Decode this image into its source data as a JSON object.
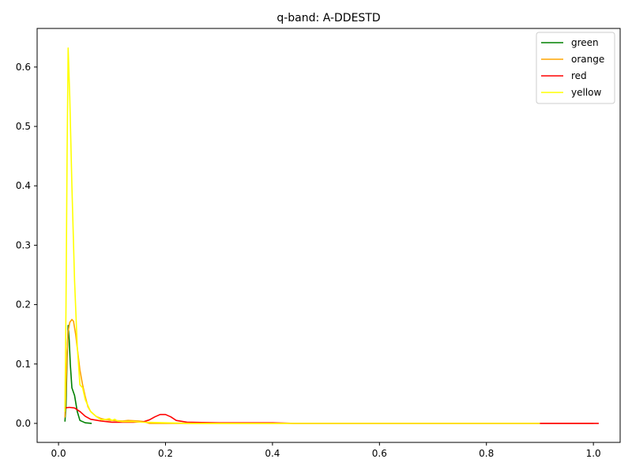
{
  "chart_data": {
    "type": "line",
    "title": "q-band: A-DDESTD",
    "xlabel": "",
    "ylabel": "",
    "xlim": [
      -0.04,
      1.05
    ],
    "ylim": [
      -0.032,
      0.665
    ],
    "xticks": [
      0.0,
      0.2,
      0.4,
      0.6,
      0.8,
      1.0
    ],
    "xtick_labels": [
      "0.0",
      "0.2",
      "0.4",
      "0.6",
      "0.8",
      "1.0"
    ],
    "yticks": [
      0.0,
      0.1,
      0.2,
      0.3,
      0.4,
      0.5,
      0.6
    ],
    "ytick_labels": [
      "0.0",
      "0.1",
      "0.2",
      "0.3",
      "0.4",
      "0.5",
      "0.6"
    ],
    "grid": false,
    "legend_position": "top-right",
    "series": [
      {
        "name": "green",
        "color": "#008000",
        "points": [
          [
            0.012,
            0.003
          ],
          [
            0.014,
            0.03
          ],
          [
            0.016,
            0.11
          ],
          [
            0.018,
            0.165
          ],
          [
            0.02,
            0.14
          ],
          [
            0.022,
            0.1
          ],
          [
            0.025,
            0.06
          ],
          [
            0.03,
            0.047
          ],
          [
            0.035,
            0.02
          ],
          [
            0.04,
            0.005
          ],
          [
            0.05,
            0.001
          ],
          [
            0.062,
            0.0
          ]
        ]
      },
      {
        "name": "orange",
        "color": "#ffa500",
        "points": [
          [
            0.012,
            0.01
          ],
          [
            0.014,
            0.06
          ],
          [
            0.016,
            0.12
          ],
          [
            0.018,
            0.155
          ],
          [
            0.021,
            0.17
          ],
          [
            0.025,
            0.175
          ],
          [
            0.028,
            0.172
          ],
          [
            0.032,
            0.15
          ],
          [
            0.036,
            0.12
          ],
          [
            0.04,
            0.09
          ],
          [
            0.045,
            0.065
          ],
          [
            0.05,
            0.045
          ],
          [
            0.055,
            0.028
          ],
          [
            0.06,
            0.02
          ],
          [
            0.07,
            0.012
          ],
          [
            0.08,
            0.008
          ],
          [
            0.09,
            0.006
          ],
          [
            0.1,
            0.005
          ],
          [
            0.12,
            0.004
          ],
          [
            0.13,
            0.005
          ],
          [
            0.15,
            0.004
          ],
          [
            0.16,
            0.003
          ],
          [
            0.17,
            0.0
          ],
          [
            0.19,
            0.0
          ],
          [
            0.25,
            0.0
          ],
          [
            0.45,
            0.0
          ],
          [
            1.0,
            0.0
          ]
        ]
      },
      {
        "name": "red",
        "color": "#ff0000",
        "points": [
          [
            0.012,
            0.026
          ],
          [
            0.02,
            0.027
          ],
          [
            0.03,
            0.026
          ],
          [
            0.04,
            0.02
          ],
          [
            0.05,
            0.012
          ],
          [
            0.06,
            0.007
          ],
          [
            0.08,
            0.004
          ],
          [
            0.1,
            0.002
          ],
          [
            0.12,
            0.002
          ],
          [
            0.14,
            0.002
          ],
          [
            0.16,
            0.003
          ],
          [
            0.17,
            0.006
          ],
          [
            0.18,
            0.011
          ],
          [
            0.19,
            0.015
          ],
          [
            0.2,
            0.015
          ],
          [
            0.21,
            0.011
          ],
          [
            0.22,
            0.005
          ],
          [
            0.24,
            0.002
          ],
          [
            0.3,
            0.001
          ],
          [
            0.4,
            0.001
          ],
          [
            0.44,
            0.0
          ],
          [
            0.6,
            0.0
          ],
          [
            0.8,
            0.0
          ],
          [
            0.9,
            0.0
          ],
          [
            1.01,
            0.0
          ]
        ]
      },
      {
        "name": "yellow",
        "color": "#ffff00",
        "points": [
          [
            0.012,
            0.02
          ],
          [
            0.014,
            0.2
          ],
          [
            0.016,
            0.45
          ],
          [
            0.018,
            0.632
          ],
          [
            0.021,
            0.55
          ],
          [
            0.025,
            0.4
          ],
          [
            0.03,
            0.24
          ],
          [
            0.035,
            0.13
          ],
          [
            0.04,
            0.065
          ],
          [
            0.045,
            0.06
          ],
          [
            0.05,
            0.04
          ],
          [
            0.06,
            0.02
          ],
          [
            0.07,
            0.012
          ],
          [
            0.08,
            0.006
          ],
          [
            0.09,
            0.007
          ],
          [
            0.095,
            0.008
          ],
          [
            0.1,
            0.005
          ],
          [
            0.105,
            0.007
          ],
          [
            0.11,
            0.004
          ],
          [
            0.12,
            0.003
          ],
          [
            0.14,
            0.003
          ],
          [
            0.16,
            0.002
          ],
          [
            0.2,
            0.001
          ],
          [
            0.25,
            0.0
          ],
          [
            0.4,
            0.0
          ],
          [
            0.7,
            0.0
          ],
          [
            0.9,
            0.0
          ]
        ]
      }
    ]
  }
}
